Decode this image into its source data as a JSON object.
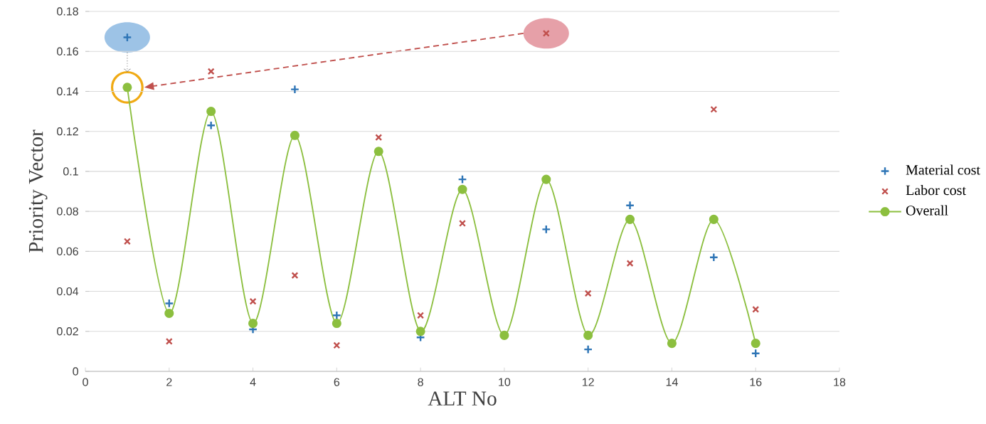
{
  "chart_data": {
    "type": "scatter",
    "xlabel": "ALT No",
    "ylabel": "Priority Vector",
    "x": [
      1,
      2,
      3,
      4,
      5,
      6,
      7,
      8,
      9,
      10,
      11,
      12,
      13,
      14,
      15,
      16
    ],
    "series": [
      {
        "name": "Material cost",
        "color": "#2e75b6",
        "marker": "cross",
        "values": [
          0.167,
          0.034,
          0.123,
          0.021,
          0.141,
          0.028,
          null,
          0.017,
          0.096,
          null,
          0.071,
          0.011,
          0.083,
          null,
          0.057,
          0.009
        ]
      },
      {
        "name": "Labor cost",
        "color": "#c0504d",
        "marker": "x",
        "values": [
          0.065,
          0.015,
          0.15,
          0.035,
          0.048,
          0.013,
          0.117,
          0.028,
          0.074,
          null,
          0.169,
          0.039,
          0.054,
          null,
          0.131,
          0.031
        ]
      },
      {
        "name": "Overall",
        "type": "line",
        "color": "#8cbf3f",
        "marker": "circle",
        "values": [
          0.142,
          0.029,
          0.13,
          0.024,
          0.118,
          0.024,
          0.11,
          0.02,
          0.091,
          0.018,
          0.096,
          0.018,
          0.076,
          0.014,
          0.076,
          0.014
        ]
      }
    ],
    "xlim": [
      0,
      18
    ],
    "xticks": [
      0,
      2,
      4,
      6,
      8,
      10,
      12,
      14,
      16,
      18
    ],
    "ylim": [
      0,
      0.18
    ],
    "yticks": [
      0,
      0.02,
      0.04,
      0.06,
      0.08,
      0.1,
      0.12,
      0.14,
      0.16,
      0.18
    ],
    "grid": "y",
    "legend": "right"
  }
}
